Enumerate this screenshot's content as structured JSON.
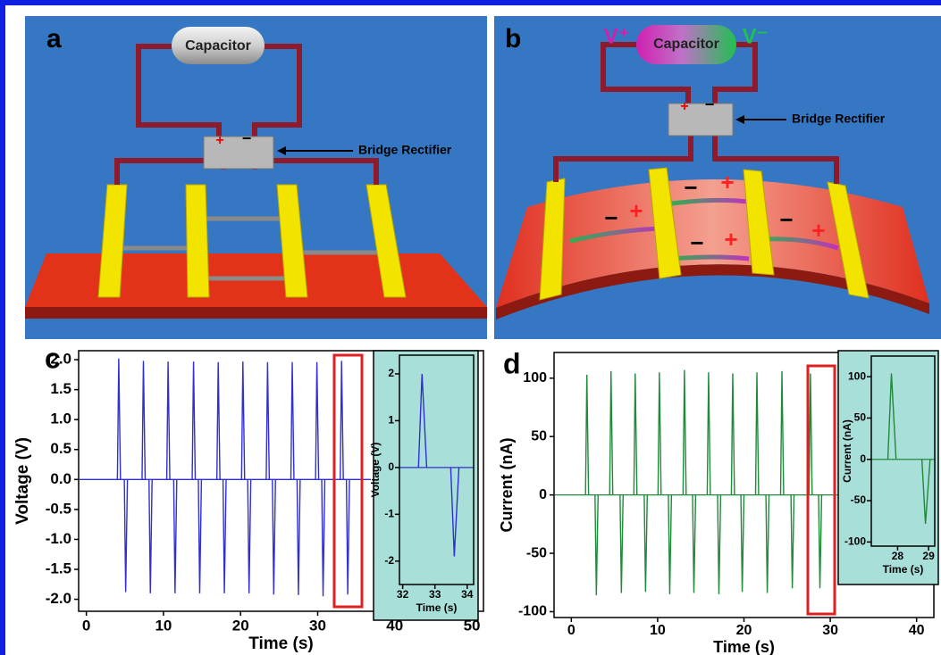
{
  "panels": {
    "a": {
      "label": "a",
      "capacitor": "Capacitor",
      "rectifier": "Bridge Rectifier",
      "signs": [
        "+",
        "−"
      ]
    },
    "b": {
      "label": "b",
      "capacitor": "Capacitor",
      "rectifier": "Bridge Rectifier",
      "v_plus": "V⁺",
      "v_minus": "V⁻",
      "signs": [
        "+",
        "−"
      ],
      "charges": [
        "−",
        "+",
        "−",
        "+",
        "−",
        "+",
        "−",
        "+"
      ]
    }
  },
  "chart_data": [
    {
      "type": "spike",
      "panel_label": "c",
      "x_label": "Time (s)",
      "y_label": "Voltage (V)",
      "color": "#2f2fd2",
      "xlim": [
        -1,
        51.5
      ],
      "xticks": [
        0,
        10,
        20,
        30,
        40,
        50
      ],
      "ylim": [
        -2.2,
        2.15
      ],
      "yticks": [
        {
          "value": 2,
          "label": "2.0"
        },
        1.5,
        {
          "value": 1,
          "label": "1.0"
        },
        0.5,
        {
          "value": 0,
          "label": "0.0"
        },
        -0.5,
        {
          "value": -1,
          "label": "-1.0"
        },
        -1.5,
        {
          "value": -2,
          "label": "-2.0"
        }
      ],
      "series": [
        {
          "x": [
            4.2,
            5.1,
            7.4,
            8.3,
            10.6,
            11.5,
            13.9,
            14.7,
            17.1,
            17.9,
            20.3,
            21.1,
            23.5,
            24.3,
            26.7,
            27.5,
            29.9,
            30.7,
            33.1,
            33.9
          ],
          "values": [
            2.02,
            -1.88,
            1.98,
            -1.9,
            1.97,
            -1.9,
            1.97,
            -1.9,
            1.96,
            -1.9,
            1.97,
            -1.9,
            1.96,
            -1.92,
            1.96,
            -1.93,
            1.96,
            -1.95,
            1.98,
            -1.92
          ]
        }
      ]
    },
    {
      "type": "spike",
      "x_label": "Time (s)",
      "y_label": "Voltage (V)",
      "color": "#2f2fd2",
      "xlim": [
        31.9,
        34.2
      ],
      "xticks": [
        32,
        33,
        34
      ],
      "ylim": [
        -2.5,
        2.4
      ],
      "yticks": [
        2,
        1,
        0,
        -1,
        -2
      ],
      "series": [
        {
          "x": [
            32.6,
            33.6
          ],
          "values": [
            2.0,
            -1.9
          ]
        }
      ]
    },
    {
      "type": "spike",
      "panel_label": "d",
      "x_label": "Time (s)",
      "y_label": "Current (nA)",
      "color": "#1f8a3a",
      "xlim": [
        -2,
        42
      ],
      "xticks": [
        0,
        10,
        20,
        30,
        40
      ],
      "ylim": [
        -105,
        122
      ],
      "yticks": [
        100,
        50,
        0,
        -50,
        -100
      ],
      "series": [
        {
          "x": [
            1.8,
            2.9,
            4.6,
            5.8,
            7.4,
            8.6,
            10.2,
            11.4,
            13.1,
            14.2,
            15.9,
            17.1,
            18.7,
            19.8,
            21.5,
            22.7,
            24.4,
            25.6,
            27.7,
            28.8
          ],
          "values": [
            103,
            -86,
            106,
            -84,
            104,
            -83,
            105,
            -85,
            107,
            -84,
            105,
            -85,
            104,
            -83,
            105,
            -84,
            106,
            -80,
            104,
            -80
          ]
        }
      ]
    },
    {
      "type": "spike",
      "x_label": "Time (s)",
      "y_label": "Current (nA)",
      "color": "#1f8a3a",
      "xlim": [
        27.15,
        29.2
      ],
      "xticks": [
        28,
        29
      ],
      "ylim": [
        -105,
        125
      ],
      "yticks": [
        100,
        50,
        0,
        -50,
        -100
      ],
      "series": [
        {
          "x": [
            27.8,
            28.9
          ],
          "values": [
            104,
            -78
          ]
        }
      ]
    }
  ]
}
